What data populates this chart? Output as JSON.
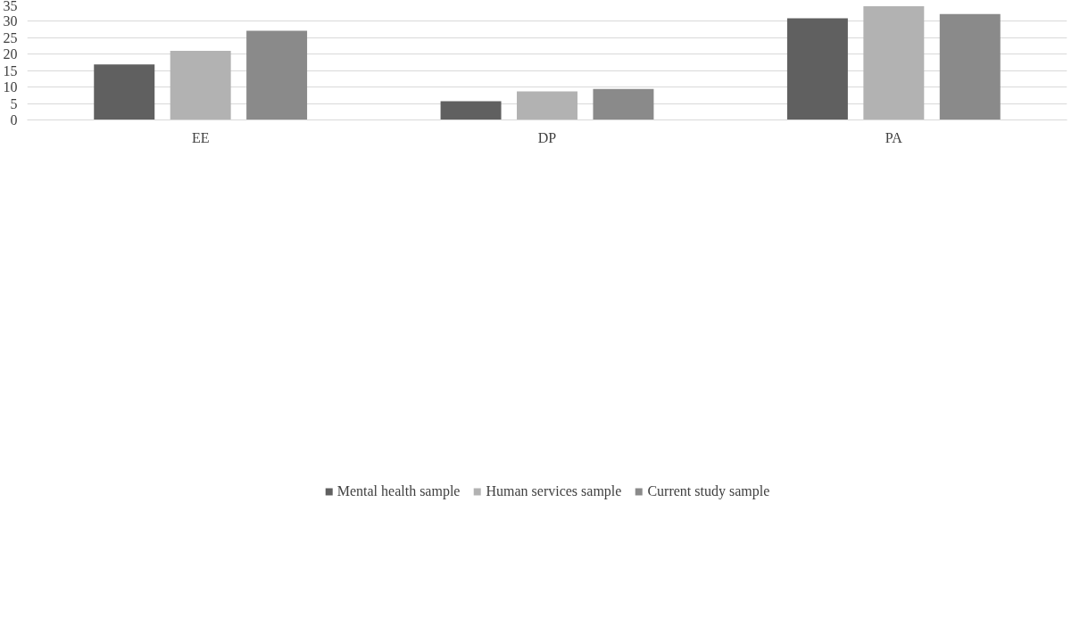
{
  "chart_data": {
    "type": "bar",
    "categories": [
      "EE",
      "DP",
      "PA"
    ],
    "series": [
      {
        "name": "Mental health sample",
        "color": "#606060",
        "values": [
          16.9,
          5.7,
          30.9
        ]
      },
      {
        "name": "Human services sample",
        "color": "#b2b2b2",
        "values": [
          21.0,
          8.7,
          34.6
        ]
      },
      {
        "name": "Current study sample",
        "color": "#8a8a8a",
        "values": [
          27.1,
          9.4,
          32.2
        ]
      }
    ],
    "ylim": [
      0,
      35
    ],
    "yticks": [
      0,
      5,
      10,
      15,
      20,
      25,
      30,
      35
    ],
    "grid": "y",
    "legend": "bottom"
  }
}
